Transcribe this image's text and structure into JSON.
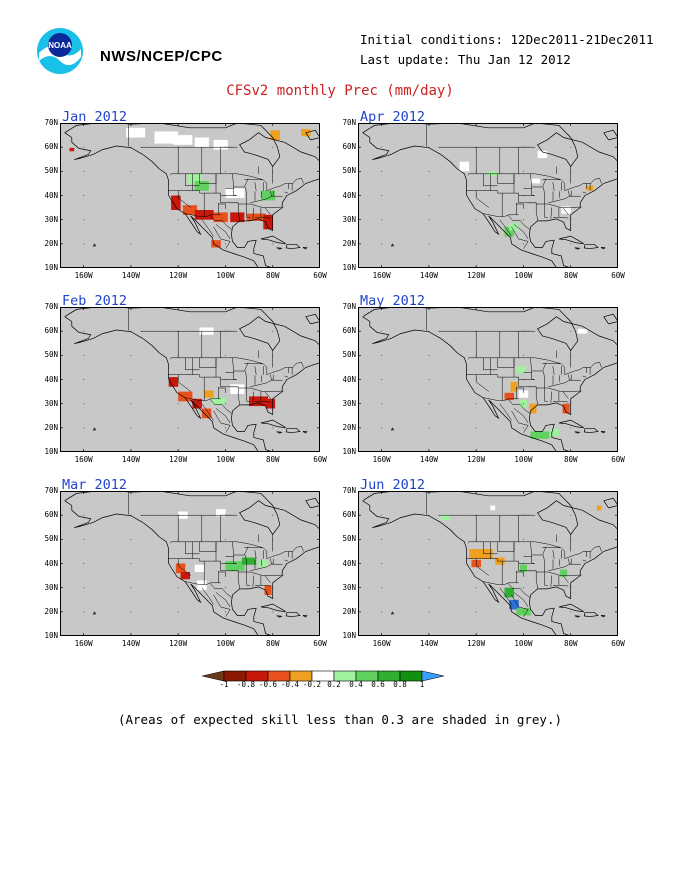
{
  "header": {
    "organization": "NWS/NCEP/CPC",
    "initial_conditions": "Initial conditions: 12Dec2011-21Dec2011",
    "last_update": "Last update: Thu Jan 12 2012",
    "title": "CFSv2 monthly Prec (mm/day)"
  },
  "logo": {
    "text": "NOAA"
  },
  "panels": [
    {
      "label": "Jan 2012"
    },
    {
      "label": "Apr 2012"
    },
    {
      "label": "Feb 2012"
    },
    {
      "label": "May 2012"
    },
    {
      "label": "Mar 2012"
    },
    {
      "label": "Jun 2012"
    }
  ],
  "axes": {
    "lat_labels": [
      "70N",
      "60N",
      "50N",
      "40N",
      "30N",
      "20N",
      "10N"
    ],
    "lon_labels": [
      "160W",
      "140W",
      "120W",
      "100W",
      "80W",
      "60W"
    ]
  },
  "colorbar": {
    "labels": [
      "-1",
      "-0.8",
      "-0.6",
      "-0.4",
      "-0.2",
      "0.2",
      "0.4",
      "0.6",
      "0.8",
      "1"
    ],
    "colors": [
      "#8b1a00",
      "#c8180c",
      "#e8501c",
      "#f0a020",
      "#ffffff",
      "#a0f0a0",
      "#60d060",
      "#30b030",
      "#109010",
      "#2b6fd6"
    ],
    "end_low": "#6b3a1a",
    "end_high": "#3aa0ff"
  },
  "footnote": "(Areas of expected skill less than 0.3 are shaded in grey.)",
  "colors": {
    "title": "#cc2222",
    "month_label": "#2244cc",
    "land_grey": "#c8c8c8"
  }
}
